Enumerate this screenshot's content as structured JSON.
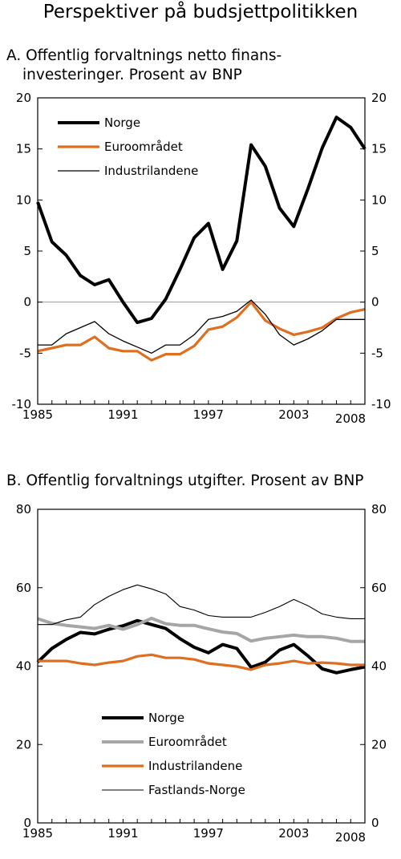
{
  "title": "Perspektiver på budsjettpolitikken",
  "chart_data": [
    {
      "type": "line",
      "panel": "A.",
      "title_line1": "Offentlig forvaltnings netto finans-",
      "title_line2": "investeringer. Prosent av BNP",
      "x": [
        1985,
        1986,
        1987,
        1988,
        1989,
        1990,
        1991,
        1992,
        1993,
        1994,
        1995,
        1996,
        1997,
        1998,
        1999,
        2000,
        2001,
        2002,
        2003,
        2004,
        2005,
        2006,
        2007,
        2008
      ],
      "xticks": [
        "1985",
        "1991",
        "1997",
        "2003",
        "2008"
      ],
      "xlim": [
        1985,
        2008
      ],
      "ylim": [
        -10,
        20
      ],
      "yticks": [
        "20",
        "15",
        "10",
        "5",
        "0",
        "-5",
        "-10"
      ],
      "legend_position": "top-left",
      "series": [
        {
          "name": "Norge",
          "color": "#000000",
          "width": 4,
          "values": [
            9.8,
            5.9,
            4.6,
            2.6,
            1.7,
            2.2,
            0.0,
            -2.0,
            -1.6,
            0.3,
            3.2,
            6.3,
            7.7,
            3.2,
            6.0,
            15.4,
            13.3,
            9.2,
            7.4,
            11.1,
            15.1,
            18.1,
            17.1,
            15.0
          ]
        },
        {
          "name": "Euroområdet",
          "color": "#e06e1f",
          "width": 3.2,
          "values": [
            -4.8,
            -4.5,
            -4.2,
            -4.2,
            -3.4,
            -4.5,
            -4.8,
            -4.8,
            -5.7,
            -5.1,
            -5.1,
            -4.3,
            -2.7,
            -2.4,
            -1.5,
            0.0,
            -1.8,
            -2.6,
            -3.2,
            -2.9,
            -2.5,
            -1.6,
            -1.0,
            -0.7
          ]
        },
        {
          "name": "Industrilandene",
          "color": "#000000",
          "width": 1.3,
          "values": [
            -4.2,
            -4.2,
            -3.1,
            -2.5,
            -1.9,
            -3.1,
            -3.8,
            -4.4,
            -5.0,
            -4.2,
            -4.2,
            -3.2,
            -1.7,
            -1.4,
            -0.9,
            0.2,
            -1.2,
            -3.2,
            -4.2,
            -3.6,
            -2.8,
            -1.7,
            -1.7,
            -1.7
          ]
        }
      ]
    },
    {
      "type": "line",
      "panel": "B.",
      "title_line1": "Offentlig forvaltnings utgifter. Prosent av BNP",
      "x": [
        1985,
        1986,
        1987,
        1988,
        1989,
        1990,
        1991,
        1992,
        1993,
        1994,
        1995,
        1996,
        1997,
        1998,
        1999,
        2000,
        2001,
        2002,
        2003,
        2004,
        2005,
        2006,
        2007,
        2008
      ],
      "xticks": [
        "1985",
        "1991",
        "1997",
        "2003",
        "2008"
      ],
      "xlim": [
        1985,
        2008
      ],
      "ylim": [
        0,
        80
      ],
      "yticks": [
        "80",
        "60",
        "40",
        "20",
        "0"
      ],
      "legend_position": "bottom-left",
      "series": [
        {
          "name": "Norge",
          "color": "#000000",
          "width": 4,
          "values": [
            41.0,
            44.5,
            46.8,
            48.6,
            48.2,
            49.4,
            50.3,
            51.6,
            50.6,
            49.6,
            47.0,
            44.8,
            43.4,
            45.5,
            44.5,
            39.7,
            41.0,
            44.1,
            45.5,
            42.6,
            39.3,
            38.3,
            39.1,
            39.8
          ]
        },
        {
          "name": "Euroområdet",
          "color": "#a6a6a6",
          "width": 4,
          "values": [
            52.1,
            50.9,
            50.4,
            50.0,
            49.6,
            50.4,
            49.4,
            50.6,
            52.2,
            50.8,
            50.4,
            50.4,
            49.5,
            48.7,
            48.3,
            46.4,
            47.1,
            47.5,
            47.9,
            47.5,
            47.5,
            47.1,
            46.3,
            46.3
          ]
        },
        {
          "name": "Industrilandene",
          "color": "#e06e1f",
          "width": 3.2,
          "values": [
            41.3,
            41.3,
            41.3,
            40.7,
            40.3,
            40.9,
            41.3,
            42.5,
            42.9,
            42.1,
            42.1,
            41.7,
            40.7,
            40.3,
            39.9,
            39.1,
            40.3,
            40.7,
            41.3,
            40.7,
            40.9,
            40.7,
            40.3,
            40.3
          ]
        },
        {
          "name": "Fastlands-Norge",
          "color": "#000000",
          "width": 1.1,
          "values": [
            50.6,
            50.6,
            51.8,
            52.5,
            55.7,
            57.8,
            59.5,
            60.7,
            59.7,
            58.4,
            55.2,
            54.3,
            52.9,
            52.5,
            52.5,
            52.5,
            53.7,
            55.2,
            57.0,
            55.4,
            53.3,
            52.5,
            52.1,
            52.1
          ]
        }
      ]
    }
  ]
}
